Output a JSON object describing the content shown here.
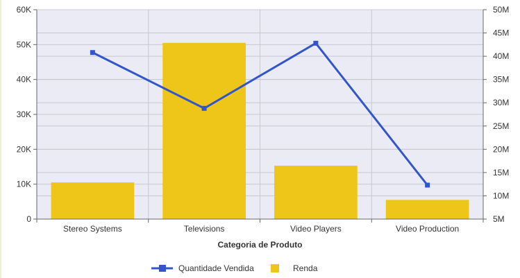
{
  "chart_data": {
    "type": "bar",
    "xlabel": "Categoria de Produto",
    "categories": [
      "Stereo Systems",
      "Televisions",
      "Video Players",
      "Video Production"
    ],
    "series": [
      {
        "name": "Renda",
        "type": "bar",
        "axis": "left",
        "color": "#eec61a",
        "values": [
          10500,
          50500,
          15300,
          5500
        ]
      },
      {
        "name": "Quantidade Vendida",
        "type": "line",
        "axis": "right",
        "color": "#3355cc",
        "values": [
          40800000,
          28800000,
          42800000,
          12300000
        ]
      }
    ],
    "y_left": {
      "min": 0,
      "max": 60000,
      "step": 10000,
      "tick_labels": [
        "0",
        "10K",
        "20K",
        "30K",
        "40K",
        "50K",
        "60K"
      ]
    },
    "y_right": {
      "min": 5000000,
      "max": 50000000,
      "step": 5000000,
      "tick_labels": [
        "5M",
        "10M",
        "15M",
        "20M",
        "25M",
        "30M",
        "35M",
        "40M",
        "45M",
        "50M"
      ]
    },
    "grid": true,
    "legend_position": "bottom-center",
    "colors": {
      "plot_background": "#ebebf5",
      "grid": "#c8c8d0",
      "axis": "#666666"
    }
  }
}
